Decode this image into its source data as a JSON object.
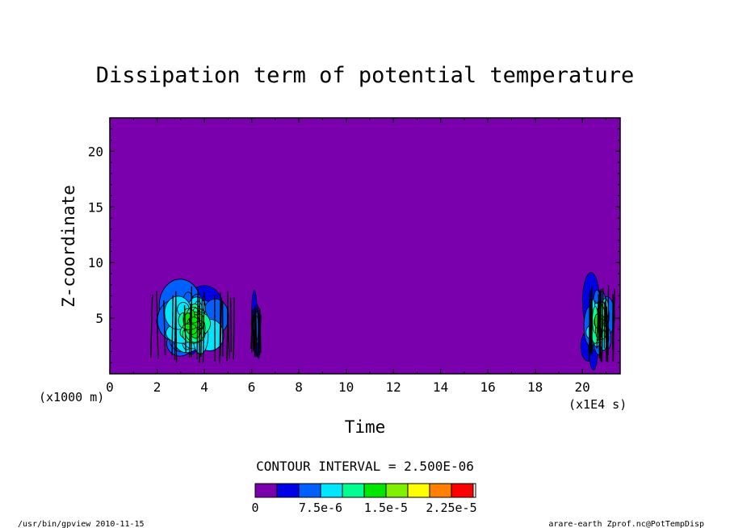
{
  "chart_data": {
    "type": "heatmap",
    "title": "Dissipation term of potential temperature",
    "xlabel": "Time",
    "x_unit": "(x1E4 s)",
    "ylabel": "Z-coordinate",
    "y_unit": "(x1000 m)",
    "xlim": [
      0,
      21.6
    ],
    "ylim": [
      0,
      23
    ],
    "x_ticks": [
      "0",
      "2",
      "4",
      "6",
      "8",
      "10",
      "12",
      "14",
      "16",
      "18",
      "20"
    ],
    "y_ticks": [
      "5",
      "10",
      "15",
      "20"
    ],
    "contour_interval": "CONTOUR INTERVAL = 2.500E-06",
    "colorbar": {
      "levels": [
        "0",
        "7.5e-6",
        "1.5e-5",
        "2.25e-5"
      ],
      "colors": [
        "#7a00ad",
        "#0000e6",
        "#0060ff",
        "#00e6ff",
        "#00ff90",
        "#00e600",
        "#7ff000",
        "#ffff00",
        "#ff8000",
        "#ff0000"
      ]
    },
    "background_color": "#7a00ad",
    "regions": [
      {
        "x0": 1.8,
        "x1": 5.4,
        "y0": 0.8,
        "y1": 8.2,
        "peak_level": 5
      },
      {
        "x0": 6.0,
        "x1": 6.4,
        "y0": 1.5,
        "y1": 6.5,
        "peak_level": 2
      },
      {
        "x0": 20.0,
        "x1": 21.4,
        "y0": 1.0,
        "y1": 8.0,
        "peak_level": 5
      }
    ]
  },
  "footer": {
    "left": "/usr/bin/gpview  2010-11-15",
    "right": "arare-earth_Zprof.nc@PotTempDisp"
  }
}
